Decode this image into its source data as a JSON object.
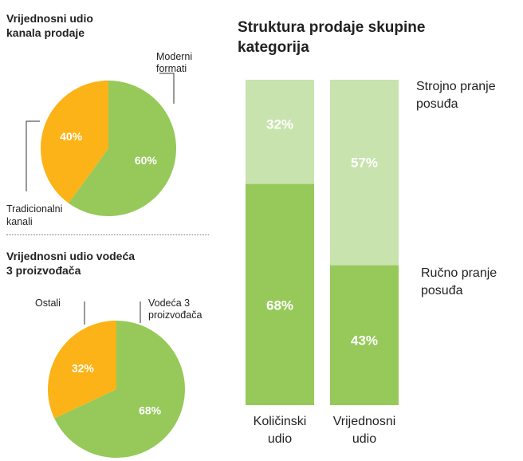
{
  "colors": {
    "orange": "#FBB317",
    "green": "#96C95A",
    "light_green": "#C8E3AE",
    "line": "#333333"
  },
  "chart_data": [
    {
      "type": "pie",
      "title_lines": [
        "Vrijednosni udio",
        "kanala prodaje"
      ],
      "slices": [
        {
          "label_lines": [
            "Moderni",
            "formati"
          ],
          "value": 60,
          "value_label": "60%",
          "color": "#96C95A"
        },
        {
          "label_lines": [
            "Tradicionalni",
            "kanali"
          ],
          "value": 40,
          "value_label": "40%",
          "color": "#FBB317"
        }
      ]
    },
    {
      "type": "pie",
      "title_lines": [
        "Vrijednosni udio vodeća",
        "3 proizvođača"
      ],
      "slices": [
        {
          "label_lines": [
            "Vodeća 3",
            "proizvođača"
          ],
          "value": 68,
          "value_label": "68%",
          "color": "#96C95A"
        },
        {
          "label_lines": [
            "Ostali"
          ],
          "value": 32,
          "value_label": "32%",
          "color": "#FBB317"
        }
      ]
    },
    {
      "type": "bar",
      "stacked": true,
      "title_lines": [
        "Struktura prodaje skupine",
        "kategorija"
      ],
      "categories": [
        {
          "label_lines": [
            "Količinski",
            "udio"
          ]
        },
        {
          "label_lines": [
            "Vrijednosni",
            "udio"
          ]
        }
      ],
      "series": [
        {
          "name_lines": [
            "Ručno pranje",
            "posuđa"
          ],
          "values": [
            68,
            43
          ],
          "value_labels": [
            "68%",
            "43%"
          ],
          "color": "#96C95A"
        },
        {
          "name_lines": [
            "Strojno pranje",
            "posuđa"
          ],
          "values": [
            32,
            57
          ],
          "value_labels": [
            "32%",
            "57%"
          ],
          "color": "#C8E3AE"
        }
      ],
      "ylim": [
        0,
        100
      ]
    }
  ]
}
